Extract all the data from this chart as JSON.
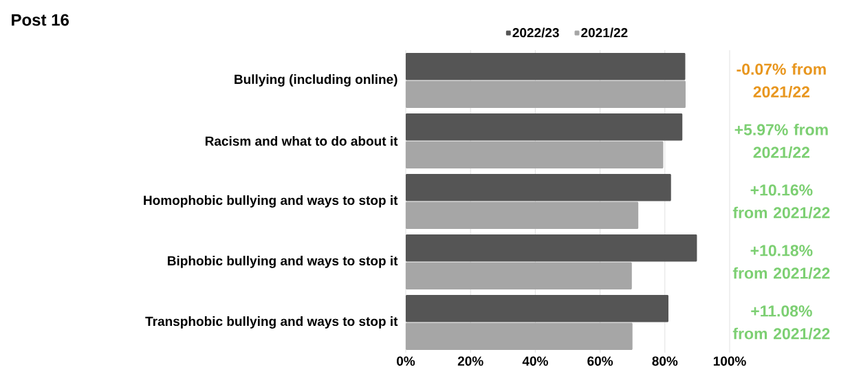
{
  "chart_data": {
    "type": "bar",
    "orientation": "horizontal",
    "title": "Post 16",
    "categories": [
      "Bullying (including online)",
      "Racism and what to do about it",
      "Homophobic bullying and ways to stop it",
      "Biphobic bullying and ways to stop it",
      "Transphobic bullying and ways to stop it"
    ],
    "series": [
      {
        "name": "2022/23",
        "color": "#555555",
        "values": [
          86.3,
          85.4,
          81.9,
          89.9,
          81.1
        ]
      },
      {
        "name": "2021/22",
        "color": "#a6a6a6",
        "values": [
          86.4,
          79.5,
          71.8,
          69.8,
          70.0
        ]
      }
    ],
    "xlim": [
      0,
      100
    ],
    "xticks": [
      {
        "value": 0,
        "label": "0%"
      },
      {
        "value": 20,
        "label": "20%"
      },
      {
        "value": 40,
        "label": "40%"
      },
      {
        "value": 60,
        "label": "60%"
      },
      {
        "value": 80,
        "label": "80%"
      },
      {
        "value": 100,
        "label": "100%"
      }
    ],
    "grid": "x",
    "legend": "top",
    "annotations": [
      "-0.07% from 2021/22",
      "+5.97% from 2021/22",
      "+10.16% from 2021/22",
      "+10.18% from 2021/22",
      "+11.08% from 2021/22"
    ]
  }
}
